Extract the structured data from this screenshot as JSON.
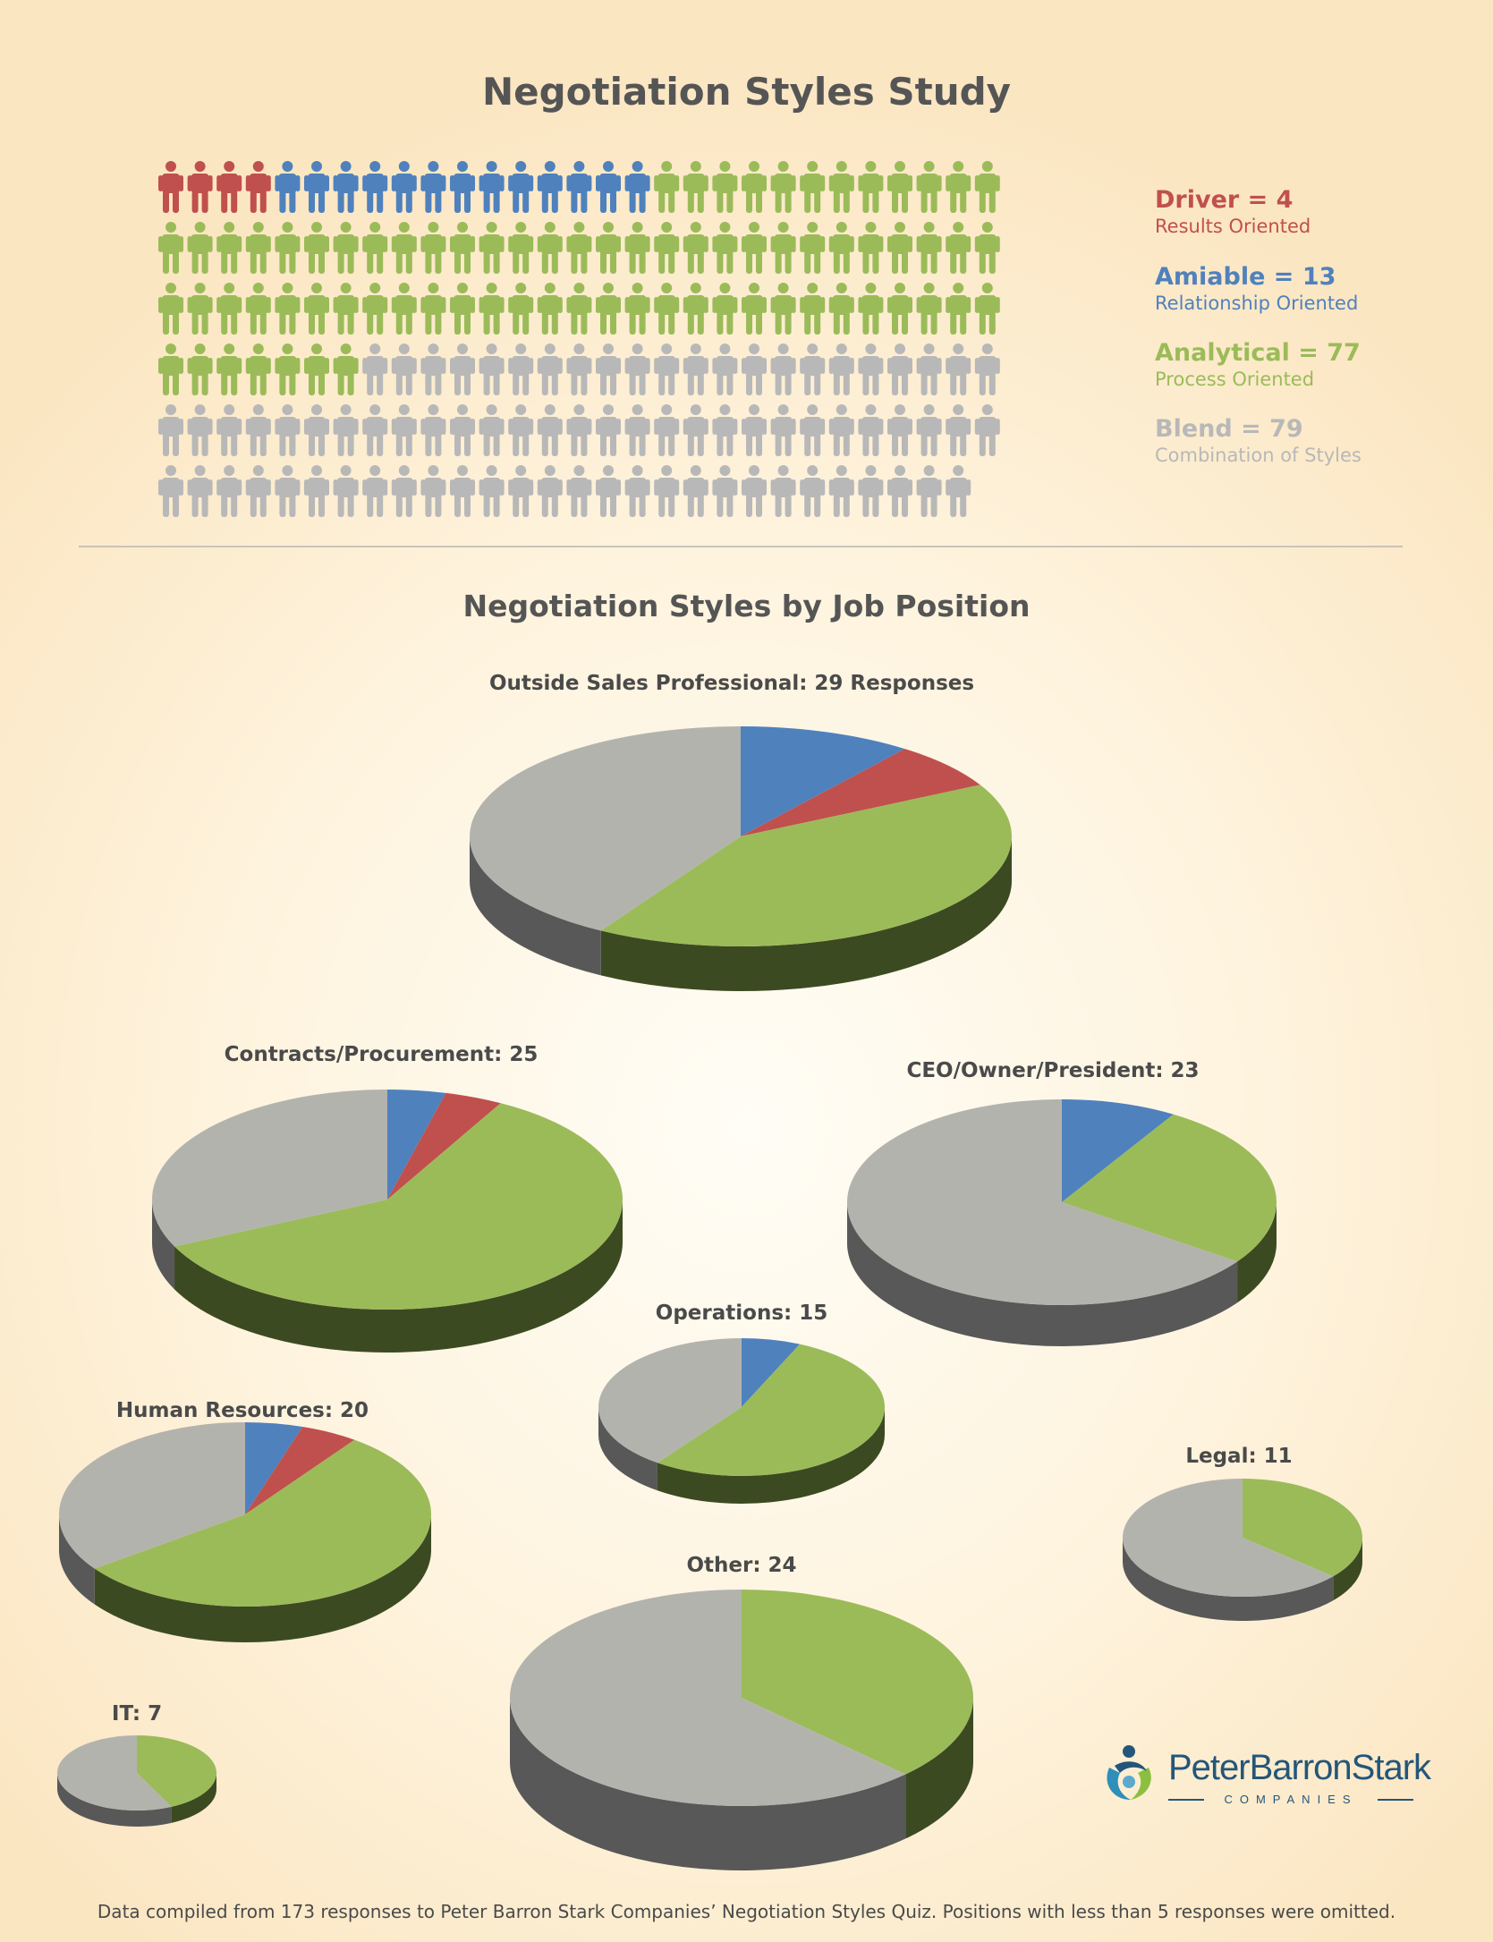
{
  "title": "Negotiation Styles Study",
  "legend": [
    {
      "label": "Driver = 4",
      "sub": "Results Oriented",
      "color": "#c0504d"
    },
    {
      "label": "Amiable = 13",
      "sub": "Relationship Oriented",
      "color": "#4f81bd"
    },
    {
      "label": "Analytical = 77",
      "sub": "Process Oriented",
      "color": "#9bbb59"
    },
    {
      "label": "Blend = 79",
      "sub": "Combination of Styles",
      "color": "#b8b8b8"
    }
  ],
  "subtitle": "Negotiation Styles by Job Position",
  "footer": "Data compiled from 173 responses to Peter Barron Stark Companies’ Negotiation Styles Quiz. Positions with less than 5 responses were omitted.",
  "logo": {
    "name": "PeterBarronStark",
    "sub": "COMPANIES"
  },
  "chart_data": [
    {
      "type": "pictograph",
      "icon": "person-icon",
      "per_row": 29,
      "series": [
        {
          "name": "Driver",
          "value": 4,
          "color": "#c0504d"
        },
        {
          "name": "Amiable",
          "value": 13,
          "color": "#4f81bd"
        },
        {
          "name": "Analytical",
          "value": 77,
          "color": "#9bbb59"
        },
        {
          "name": "Blend",
          "value": 79,
          "color": "#b8b8b8"
        }
      ]
    },
    {
      "type": "pie",
      "slice_order": [
        "Amiable",
        "Driver",
        "Analytical",
        "Blend"
      ],
      "colors": {
        "Amiable": "#4f81bd",
        "Driver": "#c0504d",
        "Analytical": "#9bbb59",
        "Blend": "#b3b3ae"
      },
      "pies": [
        {
          "label": "Outside Sales Professional: 29 Responses",
          "total": 29,
          "values": {
            "Amiable": 3,
            "Driver": 2,
            "Analytical": 12,
            "Blend": 12
          }
        },
        {
          "label": "Contracts/Procurement: 25",
          "total": 25,
          "values": {
            "Amiable": 1,
            "Driver": 1,
            "Analytical": 15,
            "Blend": 8
          }
        },
        {
          "label": "CEO/Owner/President: 23",
          "total": 23,
          "values": {
            "Amiable": 2,
            "Driver": 0,
            "Analytical": 6,
            "Blend": 15
          }
        },
        {
          "label": "Operations: 15",
          "total": 15,
          "values": {
            "Amiable": 1,
            "Driver": 0,
            "Analytical": 8,
            "Blend": 6
          }
        },
        {
          "label": "Human Resources: 20",
          "total": 20,
          "values": {
            "Amiable": 1,
            "Driver": 1,
            "Analytical": 11,
            "Blend": 7
          }
        },
        {
          "label": "Legal: 11",
          "total": 11,
          "values": {
            "Amiable": 0,
            "Driver": 0,
            "Analytical": 4,
            "Blend": 7
          }
        },
        {
          "label": "Other: 24",
          "total": 24,
          "values": {
            "Amiable": 0,
            "Driver": 0,
            "Analytical": 9,
            "Blend": 15
          }
        },
        {
          "label": "IT: 7",
          "total": 7,
          "values": {
            "Amiable": 0,
            "Driver": 0,
            "Analytical": 3,
            "Blend": 4
          }
        }
      ]
    }
  ]
}
